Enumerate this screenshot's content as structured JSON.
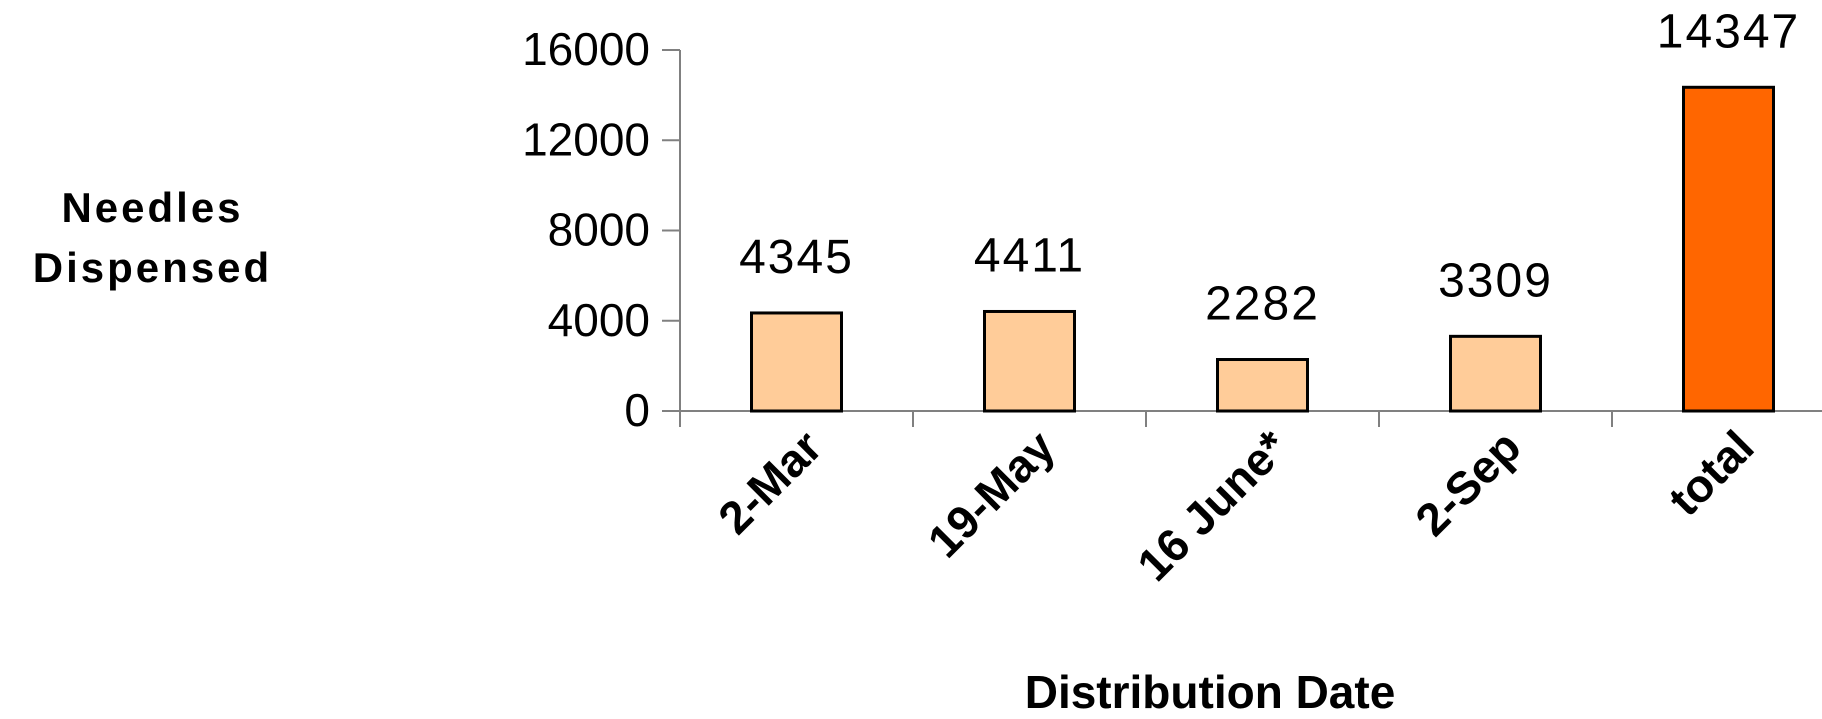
{
  "chart_data": {
    "type": "bar",
    "categories": [
      "2-Mar",
      "19-May",
      "16 June*",
      "2-Sep",
      "total"
    ],
    "values": [
      4345,
      4411,
      2282,
      3309,
      14347
    ],
    "data_labels": [
      "4345",
      "4411",
      "2282",
      "3309",
      "14347"
    ],
    "ylabel_line1": "Needles",
    "ylabel_line2": "Dispensed",
    "xlabel": "Distribution Date",
    "ylim": [
      0,
      16000
    ],
    "yticks": [
      0,
      4000,
      8000,
      12000,
      16000
    ],
    "ytick_labels": [
      "0",
      "4000",
      "8000",
      "12000",
      "16000"
    ],
    "bar_colors": [
      "#FFCC99",
      "#FFCC99",
      "#FFCC99",
      "#FFCC99",
      "#FF6600"
    ],
    "grid": false,
    "legend": "none"
  }
}
